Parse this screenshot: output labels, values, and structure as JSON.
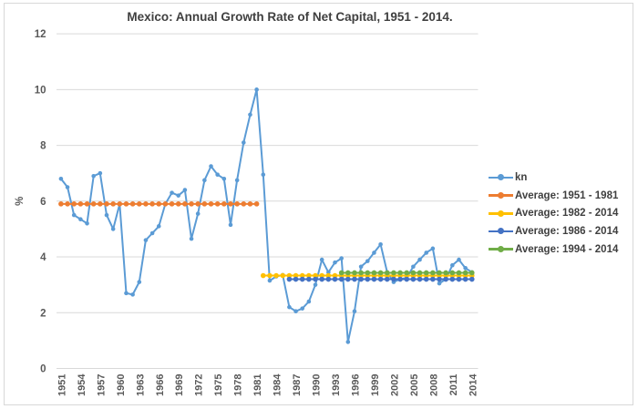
{
  "chart_data": {
    "type": "line",
    "title": "Mexico: Annual Growth Rate of Net Capital, 1951 - 2014.",
    "xlabel": "",
    "ylabel": "%",
    "ylim": [
      0,
      12
    ],
    "ytick_step": 2,
    "grid": "horizontal-only",
    "legend_position": "right",
    "x_start": 1951,
    "x_end": 2014,
    "xtick_labels": [
      "1951",
      "1954",
      "1957",
      "1960",
      "1963",
      "1966",
      "1969",
      "1972",
      "1975",
      "1978",
      "1981",
      "1984",
      "1987",
      "1990",
      "1993",
      "1996",
      "1999",
      "2002",
      "2005",
      "2008",
      "2011",
      "2014"
    ],
    "series": [
      {
        "name": "kn",
        "type": "line-markers",
        "color": "#5B9BD5",
        "year_start": 1951,
        "year_end": 2014,
        "values": [
          6.8,
          6.5,
          5.5,
          5.35,
          5.2,
          6.9,
          7.0,
          5.5,
          5.0,
          5.9,
          2.7,
          2.65,
          3.1,
          4.6,
          4.85,
          5.1,
          5.9,
          6.3,
          6.2,
          6.4,
          4.65,
          5.55,
          6.75,
          7.25,
          6.95,
          6.8,
          5.15,
          6.75,
          8.1,
          9.1,
          10.0,
          6.95,
          3.15,
          3.3,
          3.35,
          2.2,
          2.05,
          2.15,
          2.4,
          3.0,
          3.9,
          3.45,
          3.8,
          3.95,
          0.95,
          2.05,
          3.65,
          3.85,
          4.15,
          4.45,
          3.45,
          3.1,
          3.2,
          3.25,
          3.65,
          3.9,
          4.15,
          4.3,
          3.05,
          3.2,
          3.7,
          3.9,
          3.6,
          3.45
        ]
      },
      {
        "name": "Average: 1951 - 1981",
        "type": "constant-line",
        "color": "#ED7D31",
        "year_start": 1951,
        "year_end": 1981,
        "value": 5.9
      },
      {
        "name": "Average: 1982 - 2014",
        "type": "constant-line",
        "color": "#FFC000",
        "year_start": 1982,
        "year_end": 2014,
        "value": 3.33
      },
      {
        "name": "Average: 1986 - 2014",
        "type": "constant-line",
        "color": "#4472C4",
        "year_start": 1986,
        "year_end": 2014,
        "value": 3.2
      },
      {
        "name": "Average: 1994 - 2014",
        "type": "constant-line",
        "color": "#70AD47",
        "year_start": 1994,
        "year_end": 2014,
        "value": 3.43
      }
    ],
    "colors": {
      "grid": "#D9D9D9",
      "axis_text": "#595959",
      "title_text": "#3F3F3F",
      "border": "#D8D8D8"
    }
  }
}
